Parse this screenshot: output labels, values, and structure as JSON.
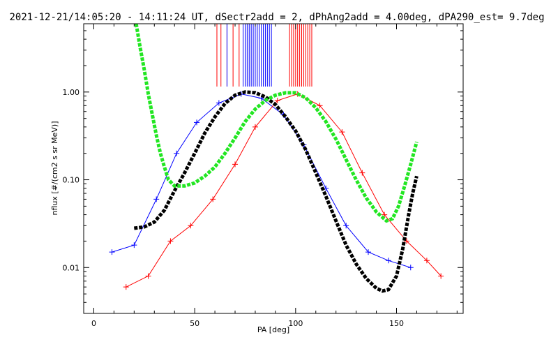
{
  "chart_data": {
    "type": "line",
    "title": "2021-12-21/14:05:20 - 14:11:24 UT, dSectr2add = 2, dPhAng2add = 4.00deg, dPA290_est=   9.7deg",
    "xlabel": "PA [deg]",
    "ylabel": "nflux [#/(cm2 s sr MeV)]",
    "x_scale": "linear",
    "y_scale": "log",
    "xlim": [
      -5,
      183
    ],
    "ylim": [
      0.003,
      6
    ],
    "x_ticks": [
      0,
      50,
      100,
      150
    ],
    "x_tick_labels": [
      "0",
      "50",
      "100",
      "150"
    ],
    "y_ticks": [
      0.01,
      0.1,
      1.0
    ],
    "y_tick_labels": [
      "0.01",
      "0.10",
      "1.00"
    ],
    "colors": {
      "blue_series": "#0000ff",
      "red_series": "#ff0000",
      "black_fit": "#000000",
      "green_fit": "#22e622",
      "axes": "#000000"
    },
    "series": [
      {
        "color": "blue",
        "style": "thin lines with plus markers",
        "x": [
          9,
          20,
          31,
          41,
          51,
          62,
          73,
          83,
          94,
          104,
          115,
          125,
          136,
          146,
          157
        ],
        "y": [
          0.015,
          0.018,
          0.06,
          0.2,
          0.45,
          0.75,
          0.95,
          0.85,
          0.55,
          0.25,
          0.08,
          0.03,
          0.015,
          0.012,
          0.01
        ]
      },
      {
        "color": "red",
        "style": "thin lines with plus markers",
        "x": [
          16,
          27,
          38,
          48,
          59,
          70,
          80,
          91,
          101,
          112,
          123,
          133,
          144,
          155,
          165,
          172
        ],
        "y": [
          0.006,
          0.008,
          0.02,
          0.03,
          0.06,
          0.15,
          0.4,
          0.8,
          0.95,
          0.7,
          0.35,
          0.12,
          0.04,
          0.02,
          0.012,
          0.008
        ]
      },
      {
        "color": "black",
        "style": "thick dashed fit",
        "x": [
          20,
          25,
          30,
          35,
          40,
          45,
          50,
          55,
          60,
          65,
          70,
          75,
          80,
          85,
          90,
          95,
          100,
          105,
          110,
          115,
          120,
          125,
          130,
          135,
          140,
          143,
          146,
          150,
          153,
          156,
          158,
          160
        ],
        "y": [
          0.028,
          0.029,
          0.033,
          0.045,
          0.075,
          0.12,
          0.2,
          0.34,
          0.52,
          0.74,
          0.92,
          1.0,
          0.98,
          0.88,
          0.72,
          0.52,
          0.36,
          0.22,
          0.12,
          0.065,
          0.034,
          0.018,
          0.011,
          0.0075,
          0.0058,
          0.0054,
          0.0056,
          0.008,
          0.016,
          0.04,
          0.07,
          0.11
        ]
      },
      {
        "color": "green",
        "style": "thick dashed fit",
        "x": [
          21,
          23,
          25,
          27,
          29,
          31,
          33,
          35,
          37,
          40,
          45,
          50,
          55,
          60,
          65,
          70,
          75,
          80,
          85,
          90,
          95,
          100,
          105,
          110,
          115,
          120,
          125,
          130,
          135,
          140,
          145,
          148,
          151,
          154,
          157,
          160
        ],
        "y": [
          6.0,
          3.2,
          1.8,
          0.95,
          0.55,
          0.32,
          0.2,
          0.14,
          0.1,
          0.085,
          0.085,
          0.092,
          0.11,
          0.14,
          0.2,
          0.3,
          0.46,
          0.64,
          0.8,
          0.92,
          0.98,
          0.98,
          0.86,
          0.66,
          0.46,
          0.29,
          0.17,
          0.1,
          0.062,
          0.043,
          0.034,
          0.036,
          0.05,
          0.085,
          0.15,
          0.27
        ]
      }
    ],
    "top_markers": [
      {
        "color": "red",
        "x": [
          61,
          63,
          66,
          69,
          72,
          97,
          98,
          99,
          100,
          101,
          102,
          103,
          104,
          105,
          106,
          107,
          108
        ]
      },
      {
        "color": "blue",
        "x": [
          66,
          74,
          75,
          76,
          77,
          78,
          79,
          80,
          81,
          82,
          83,
          84,
          85,
          86,
          87,
          88
        ]
      }
    ]
  }
}
